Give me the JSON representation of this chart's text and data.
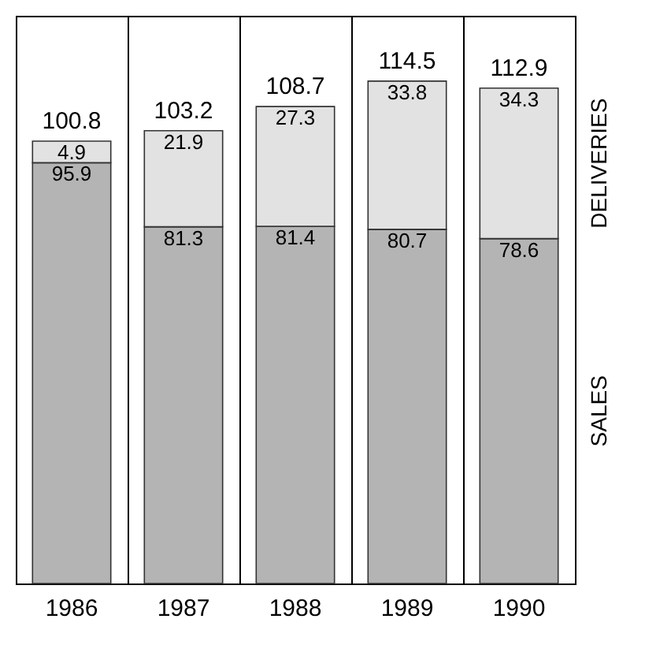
{
  "chart_data": {
    "type": "bar",
    "stacked": true,
    "categories": [
      "1986",
      "1987",
      "1988",
      "1989",
      "1990"
    ],
    "series": [
      {
        "name": "SALES",
        "color": "#b4b4b4",
        "values": [
          95.9,
          81.3,
          81.4,
          80.7,
          78.6
        ]
      },
      {
        "name": "DELIVERIES",
        "color": "#e2e2e2",
        "values": [
          4.9,
          21.9,
          27.3,
          33.8,
          34.3
        ]
      }
    ],
    "totals": [
      "100.8",
      "103.2",
      "108.7",
      "114.5",
      "112.9"
    ],
    "data_labels": true,
    "grid": "x"
  }
}
